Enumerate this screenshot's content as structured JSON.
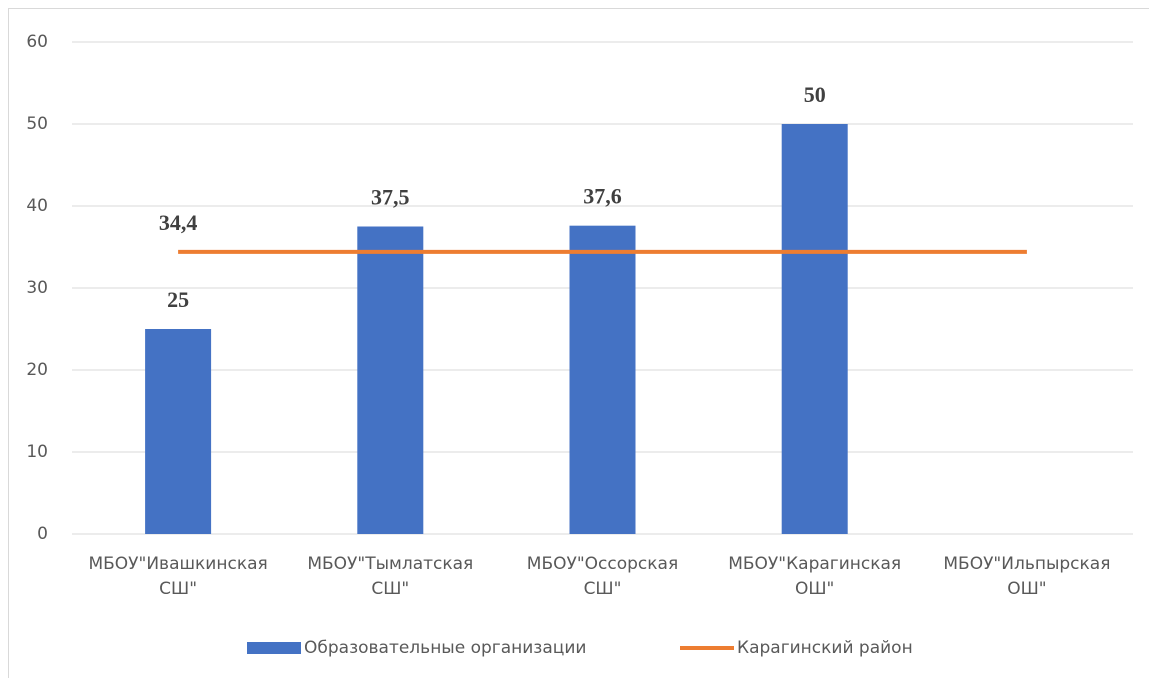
{
  "chart_data": {
    "type": "bar",
    "categories": [
      "МБОУ\"Ивашкинская СШ\"",
      "МБОУ\"Тымлатская СШ\"",
      "МБОУ\"Оссорская СШ\"",
      "МБОУ\"Карагинская ОШ\"",
      "МБОУ\"Ильпырская ОШ\""
    ],
    "series": [
      {
        "name": "Образовательные организации",
        "type": "bar",
        "color": "#4472c4",
        "values": [
          25,
          37.5,
          37.6,
          50,
          null
        ],
        "value_labels": [
          "25",
          "37,5",
          "37,6",
          "50",
          null
        ]
      },
      {
        "name": "Карагинский район",
        "type": "line",
        "color": "#ed7d31",
        "values": [
          34.4,
          34.4,
          34.4,
          34.4,
          34.4
        ],
        "value_labels": [
          "34,4",
          null,
          null,
          null,
          null
        ]
      }
    ],
    "ylim": [
      0,
      60
    ],
    "yticks": [
      0,
      10,
      20,
      30,
      40,
      50,
      60
    ],
    "grid": true,
    "legend": "bottom"
  }
}
